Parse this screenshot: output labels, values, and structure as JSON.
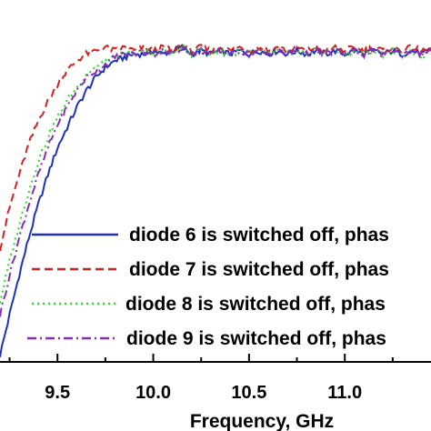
{
  "chart_data": {
    "type": "line",
    "title": "",
    "xlabel": "Frequency, GHz",
    "ylabel": "",
    "xlim": [
      9.2,
      11.45
    ],
    "ylim": [
      0,
      1
    ],
    "x_ticks": [
      9.5,
      10.0,
      10.5,
      11.0
    ],
    "x_tick_labels": [
      "9.5",
      "10.0",
      "10.5",
      "11.0"
    ],
    "grid": false,
    "legend": "lower-right",
    "series": [
      {
        "name": "diode 6 is switched off, phas",
        "color": "#1f2fbf",
        "dash": "solid",
        "points": [
          [
            9.2,
            0.02
          ],
          [
            9.25,
            0.14
          ],
          [
            9.3,
            0.26
          ],
          [
            9.35,
            0.37
          ],
          [
            9.4,
            0.47
          ],
          [
            9.45,
            0.56
          ],
          [
            9.5,
            0.64
          ],
          [
            9.55,
            0.7
          ],
          [
            9.6,
            0.76
          ],
          [
            9.65,
            0.81
          ],
          [
            9.7,
            0.85
          ],
          [
            9.75,
            0.88
          ],
          [
            9.8,
            0.9
          ],
          [
            9.85,
            0.91
          ],
          [
            9.9,
            0.92
          ],
          [
            9.95,
            0.92
          ],
          [
            10.0,
            0.93
          ],
          [
            10.05,
            0.92
          ],
          [
            10.1,
            0.93
          ],
          [
            10.15,
            0.94
          ],
          [
            10.2,
            0.92
          ],
          [
            10.25,
            0.93
          ],
          [
            10.3,
            0.92
          ],
          [
            10.35,
            0.93
          ],
          [
            10.4,
            0.92
          ],
          [
            10.45,
            0.93
          ],
          [
            10.5,
            0.92
          ],
          [
            10.55,
            0.93
          ],
          [
            10.6,
            0.92
          ],
          [
            10.65,
            0.93
          ],
          [
            10.7,
            0.92
          ],
          [
            10.75,
            0.93
          ],
          [
            10.8,
            0.92
          ],
          [
            10.85,
            0.93
          ],
          [
            10.9,
            0.92
          ],
          [
            10.95,
            0.93
          ],
          [
            11.0,
            0.92
          ],
          [
            11.05,
            0.93
          ],
          [
            11.1,
            0.92
          ],
          [
            11.15,
            0.93
          ],
          [
            11.2,
            0.92
          ],
          [
            11.25,
            0.93
          ],
          [
            11.3,
            0.92
          ],
          [
            11.35,
            0.93
          ],
          [
            11.4,
            0.92
          ],
          [
            11.45,
            0.93
          ]
        ]
      },
      {
        "name": "diode 7 is switched off, phas",
        "color": "#d62020",
        "dash": "dashed",
        "points": [
          [
            9.2,
            0.34
          ],
          [
            9.25,
            0.46
          ],
          [
            9.3,
            0.56
          ],
          [
            9.35,
            0.65
          ],
          [
            9.4,
            0.72
          ],
          [
            9.45,
            0.78
          ],
          [
            9.5,
            0.83
          ],
          [
            9.55,
            0.87
          ],
          [
            9.6,
            0.9
          ],
          [
            9.65,
            0.92
          ],
          [
            9.7,
            0.93
          ],
          [
            9.75,
            0.94
          ],
          [
            9.8,
            0.93
          ],
          [
            9.85,
            0.94
          ],
          [
            9.9,
            0.93
          ],
          [
            9.95,
            0.94
          ],
          [
            10.0,
            0.93
          ],
          [
            10.05,
            0.94
          ],
          [
            10.1,
            0.93
          ],
          [
            10.15,
            0.95
          ],
          [
            10.2,
            0.93
          ],
          [
            10.25,
            0.94
          ],
          [
            10.3,
            0.93
          ],
          [
            10.35,
            0.94
          ],
          [
            10.4,
            0.93
          ],
          [
            10.45,
            0.94
          ],
          [
            10.5,
            0.93
          ],
          [
            10.55,
            0.94
          ],
          [
            10.6,
            0.93
          ],
          [
            10.65,
            0.94
          ],
          [
            10.7,
            0.93
          ],
          [
            10.75,
            0.94
          ],
          [
            10.8,
            0.93
          ],
          [
            10.85,
            0.94
          ],
          [
            10.9,
            0.93
          ],
          [
            10.95,
            0.94
          ],
          [
            11.0,
            0.93
          ],
          [
            11.05,
            0.94
          ],
          [
            11.1,
            0.93
          ],
          [
            11.15,
            0.94
          ],
          [
            11.2,
            0.93
          ],
          [
            11.25,
            0.94
          ],
          [
            11.3,
            0.93
          ],
          [
            11.35,
            0.94
          ],
          [
            11.4,
            0.93
          ],
          [
            11.45,
            0.94
          ]
        ]
      },
      {
        "name": "diode 8 is switched off, phas",
        "color": "#22dd22",
        "dash": "dotted",
        "points": [
          [
            9.2,
            0.18
          ],
          [
            9.25,
            0.3
          ],
          [
            9.3,
            0.41
          ],
          [
            9.35,
            0.51
          ],
          [
            9.4,
            0.6
          ],
          [
            9.45,
            0.67
          ],
          [
            9.5,
            0.73
          ],
          [
            9.55,
            0.78
          ],
          [
            9.6,
            0.82
          ],
          [
            9.65,
            0.86
          ],
          [
            9.7,
            0.88
          ],
          [
            9.75,
            0.9
          ],
          [
            9.8,
            0.91
          ],
          [
            9.85,
            0.92
          ],
          [
            9.9,
            0.92
          ],
          [
            9.95,
            0.93
          ],
          [
            10.0,
            0.92
          ],
          [
            10.05,
            0.93
          ],
          [
            10.1,
            0.92
          ],
          [
            10.15,
            0.94
          ],
          [
            10.2,
            0.92
          ],
          [
            10.25,
            0.93
          ],
          [
            10.3,
            0.92
          ],
          [
            10.35,
            0.93
          ],
          [
            10.4,
            0.92
          ],
          [
            10.45,
            0.93
          ],
          [
            10.5,
            0.92
          ],
          [
            10.55,
            0.93
          ],
          [
            10.6,
            0.92
          ],
          [
            10.65,
            0.93
          ],
          [
            10.7,
            0.92
          ],
          [
            10.75,
            0.93
          ],
          [
            10.8,
            0.92
          ],
          [
            10.85,
            0.93
          ],
          [
            10.9,
            0.92
          ],
          [
            10.95,
            0.93
          ],
          [
            11.0,
            0.92
          ],
          [
            11.05,
            0.93
          ],
          [
            11.1,
            0.92
          ],
          [
            11.15,
            0.93
          ],
          [
            11.2,
            0.92
          ],
          [
            11.25,
            0.93
          ],
          [
            11.3,
            0.92
          ],
          [
            11.35,
            0.93
          ],
          [
            11.4,
            0.91
          ],
          [
            11.45,
            0.92
          ]
        ]
      },
      {
        "name": "diode 9 is switched off, phas",
        "color": "#8a2bb8",
        "dash": "dashdot",
        "points": [
          [
            9.2,
            0.14
          ],
          [
            9.25,
            0.26
          ],
          [
            9.3,
            0.37
          ],
          [
            9.35,
            0.47
          ],
          [
            9.4,
            0.56
          ],
          [
            9.45,
            0.64
          ],
          [
            9.5,
            0.71
          ],
          [
            9.55,
            0.76
          ],
          [
            9.6,
            0.81
          ],
          [
            9.65,
            0.85
          ],
          [
            9.7,
            0.87
          ],
          [
            9.75,
            0.89
          ],
          [
            9.8,
            0.91
          ],
          [
            9.85,
            0.92
          ],
          [
            9.9,
            0.92
          ],
          [
            9.95,
            0.93
          ],
          [
            10.0,
            0.92
          ],
          [
            10.05,
            0.93
          ],
          [
            10.1,
            0.92
          ],
          [
            10.15,
            0.94
          ],
          [
            10.2,
            0.92
          ],
          [
            10.25,
            0.93
          ],
          [
            10.3,
            0.92
          ],
          [
            10.35,
            0.93
          ],
          [
            10.4,
            0.92
          ],
          [
            10.45,
            0.93
          ],
          [
            10.5,
            0.92
          ],
          [
            10.55,
            0.93
          ],
          [
            10.6,
            0.92
          ],
          [
            10.65,
            0.93
          ],
          [
            10.7,
            0.92
          ],
          [
            10.75,
            0.93
          ],
          [
            10.8,
            0.92
          ],
          [
            10.85,
            0.93
          ],
          [
            10.9,
            0.92
          ],
          [
            10.95,
            0.93
          ],
          [
            11.0,
            0.92
          ],
          [
            11.05,
            0.93
          ],
          [
            11.1,
            0.92
          ],
          [
            11.15,
            0.93
          ],
          [
            11.2,
            0.92
          ],
          [
            11.25,
            0.93
          ],
          [
            11.3,
            0.92
          ],
          [
            11.35,
            0.93
          ],
          [
            11.4,
            0.92
          ],
          [
            11.45,
            0.93
          ]
        ]
      }
    ]
  }
}
